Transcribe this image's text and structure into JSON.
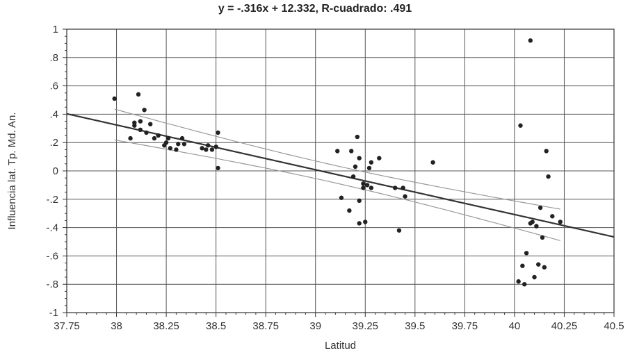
{
  "chart_data": {
    "type": "scatter",
    "title": "y = -.316x + 12.332, R-cuadrado: .491",
    "xlabel": "Latitud",
    "ylabel": "Influencia lat. Tp. Md. An.",
    "xlim": [
      37.75,
      40.5
    ],
    "ylim": [
      -1,
      1
    ],
    "x_ticks": [
      "37.75",
      "38",
      "38.25",
      "38.5",
      "38.75",
      "39",
      "39.25",
      "39.5",
      "39.75",
      "40",
      "40.25",
      "40.5"
    ],
    "y_ticks": [
      "1",
      ".8",
      ".6",
      ".4",
      ".2",
      "0",
      "-.2",
      "-.4",
      "-.6",
      "-.8",
      "-1"
    ],
    "grid": true,
    "regression": {
      "slope": -0.316,
      "intercept": 12.332,
      "r_squared": 0.491
    },
    "confidence_band": true,
    "points": [
      [
        37.99,
        0.51
      ],
      [
        38.07,
        0.23
      ],
      [
        38.09,
        0.34
      ],
      [
        38.09,
        0.32
      ],
      [
        38.11,
        0.54
      ],
      [
        38.12,
        0.29
      ],
      [
        38.12,
        0.35
      ],
      [
        38.14,
        0.43
      ],
      [
        38.15,
        0.27
      ],
      [
        38.17,
        0.33
      ],
      [
        38.19,
        0.23
      ],
      [
        38.21,
        0.25
      ],
      [
        38.24,
        0.18
      ],
      [
        38.25,
        0.2
      ],
      [
        38.26,
        0.23
      ],
      [
        38.27,
        0.16
      ],
      [
        38.3,
        0.15
      ],
      [
        38.31,
        0.19
      ],
      [
        38.33,
        0.23
      ],
      [
        38.34,
        0.19
      ],
      [
        38.43,
        0.16
      ],
      [
        38.45,
        0.15
      ],
      [
        38.46,
        0.18
      ],
      [
        38.48,
        0.15
      ],
      [
        38.5,
        0.17
      ],
      [
        38.51,
        0.27
      ],
      [
        38.51,
        0.02
      ],
      [
        39.11,
        0.14
      ],
      [
        39.13,
        -0.19
      ],
      [
        39.17,
        -0.28
      ],
      [
        39.18,
        0.14
      ],
      [
        39.19,
        -0.04
      ],
      [
        39.2,
        0.03
      ],
      [
        39.21,
        0.24
      ],
      [
        39.22,
        0.09
      ],
      [
        39.22,
        -0.21
      ],
      [
        39.22,
        -0.37
      ],
      [
        39.24,
        -0.09
      ],
      [
        39.24,
        -0.12
      ],
      [
        39.25,
        -0.36
      ],
      [
        39.26,
        -0.1
      ],
      [
        39.27,
        0.02
      ],
      [
        39.28,
        0.06
      ],
      [
        39.28,
        -0.12
      ],
      [
        39.32,
        0.09
      ],
      [
        39.4,
        -0.12
      ],
      [
        39.42,
        -0.42
      ],
      [
        39.44,
        -0.12
      ],
      [
        39.45,
        -0.18
      ],
      [
        39.59,
        0.06
      ],
      [
        40.02,
        -0.78
      ],
      [
        40.03,
        0.32
      ],
      [
        40.04,
        -0.67
      ],
      [
        40.05,
        -0.8
      ],
      [
        40.06,
        -0.58
      ],
      [
        40.08,
        0.92
      ],
      [
        40.08,
        -0.37
      ],
      [
        40.09,
        -0.36
      ],
      [
        40.1,
        -0.75
      ],
      [
        40.11,
        -0.39
      ],
      [
        40.12,
        -0.66
      ],
      [
        40.13,
        -0.26
      ],
      [
        40.14,
        -0.47
      ],
      [
        40.15,
        -0.68
      ],
      [
        40.16,
        0.14
      ],
      [
        40.17,
        -0.04
      ],
      [
        40.19,
        -0.32
      ],
      [
        40.23,
        -0.36
      ]
    ]
  }
}
